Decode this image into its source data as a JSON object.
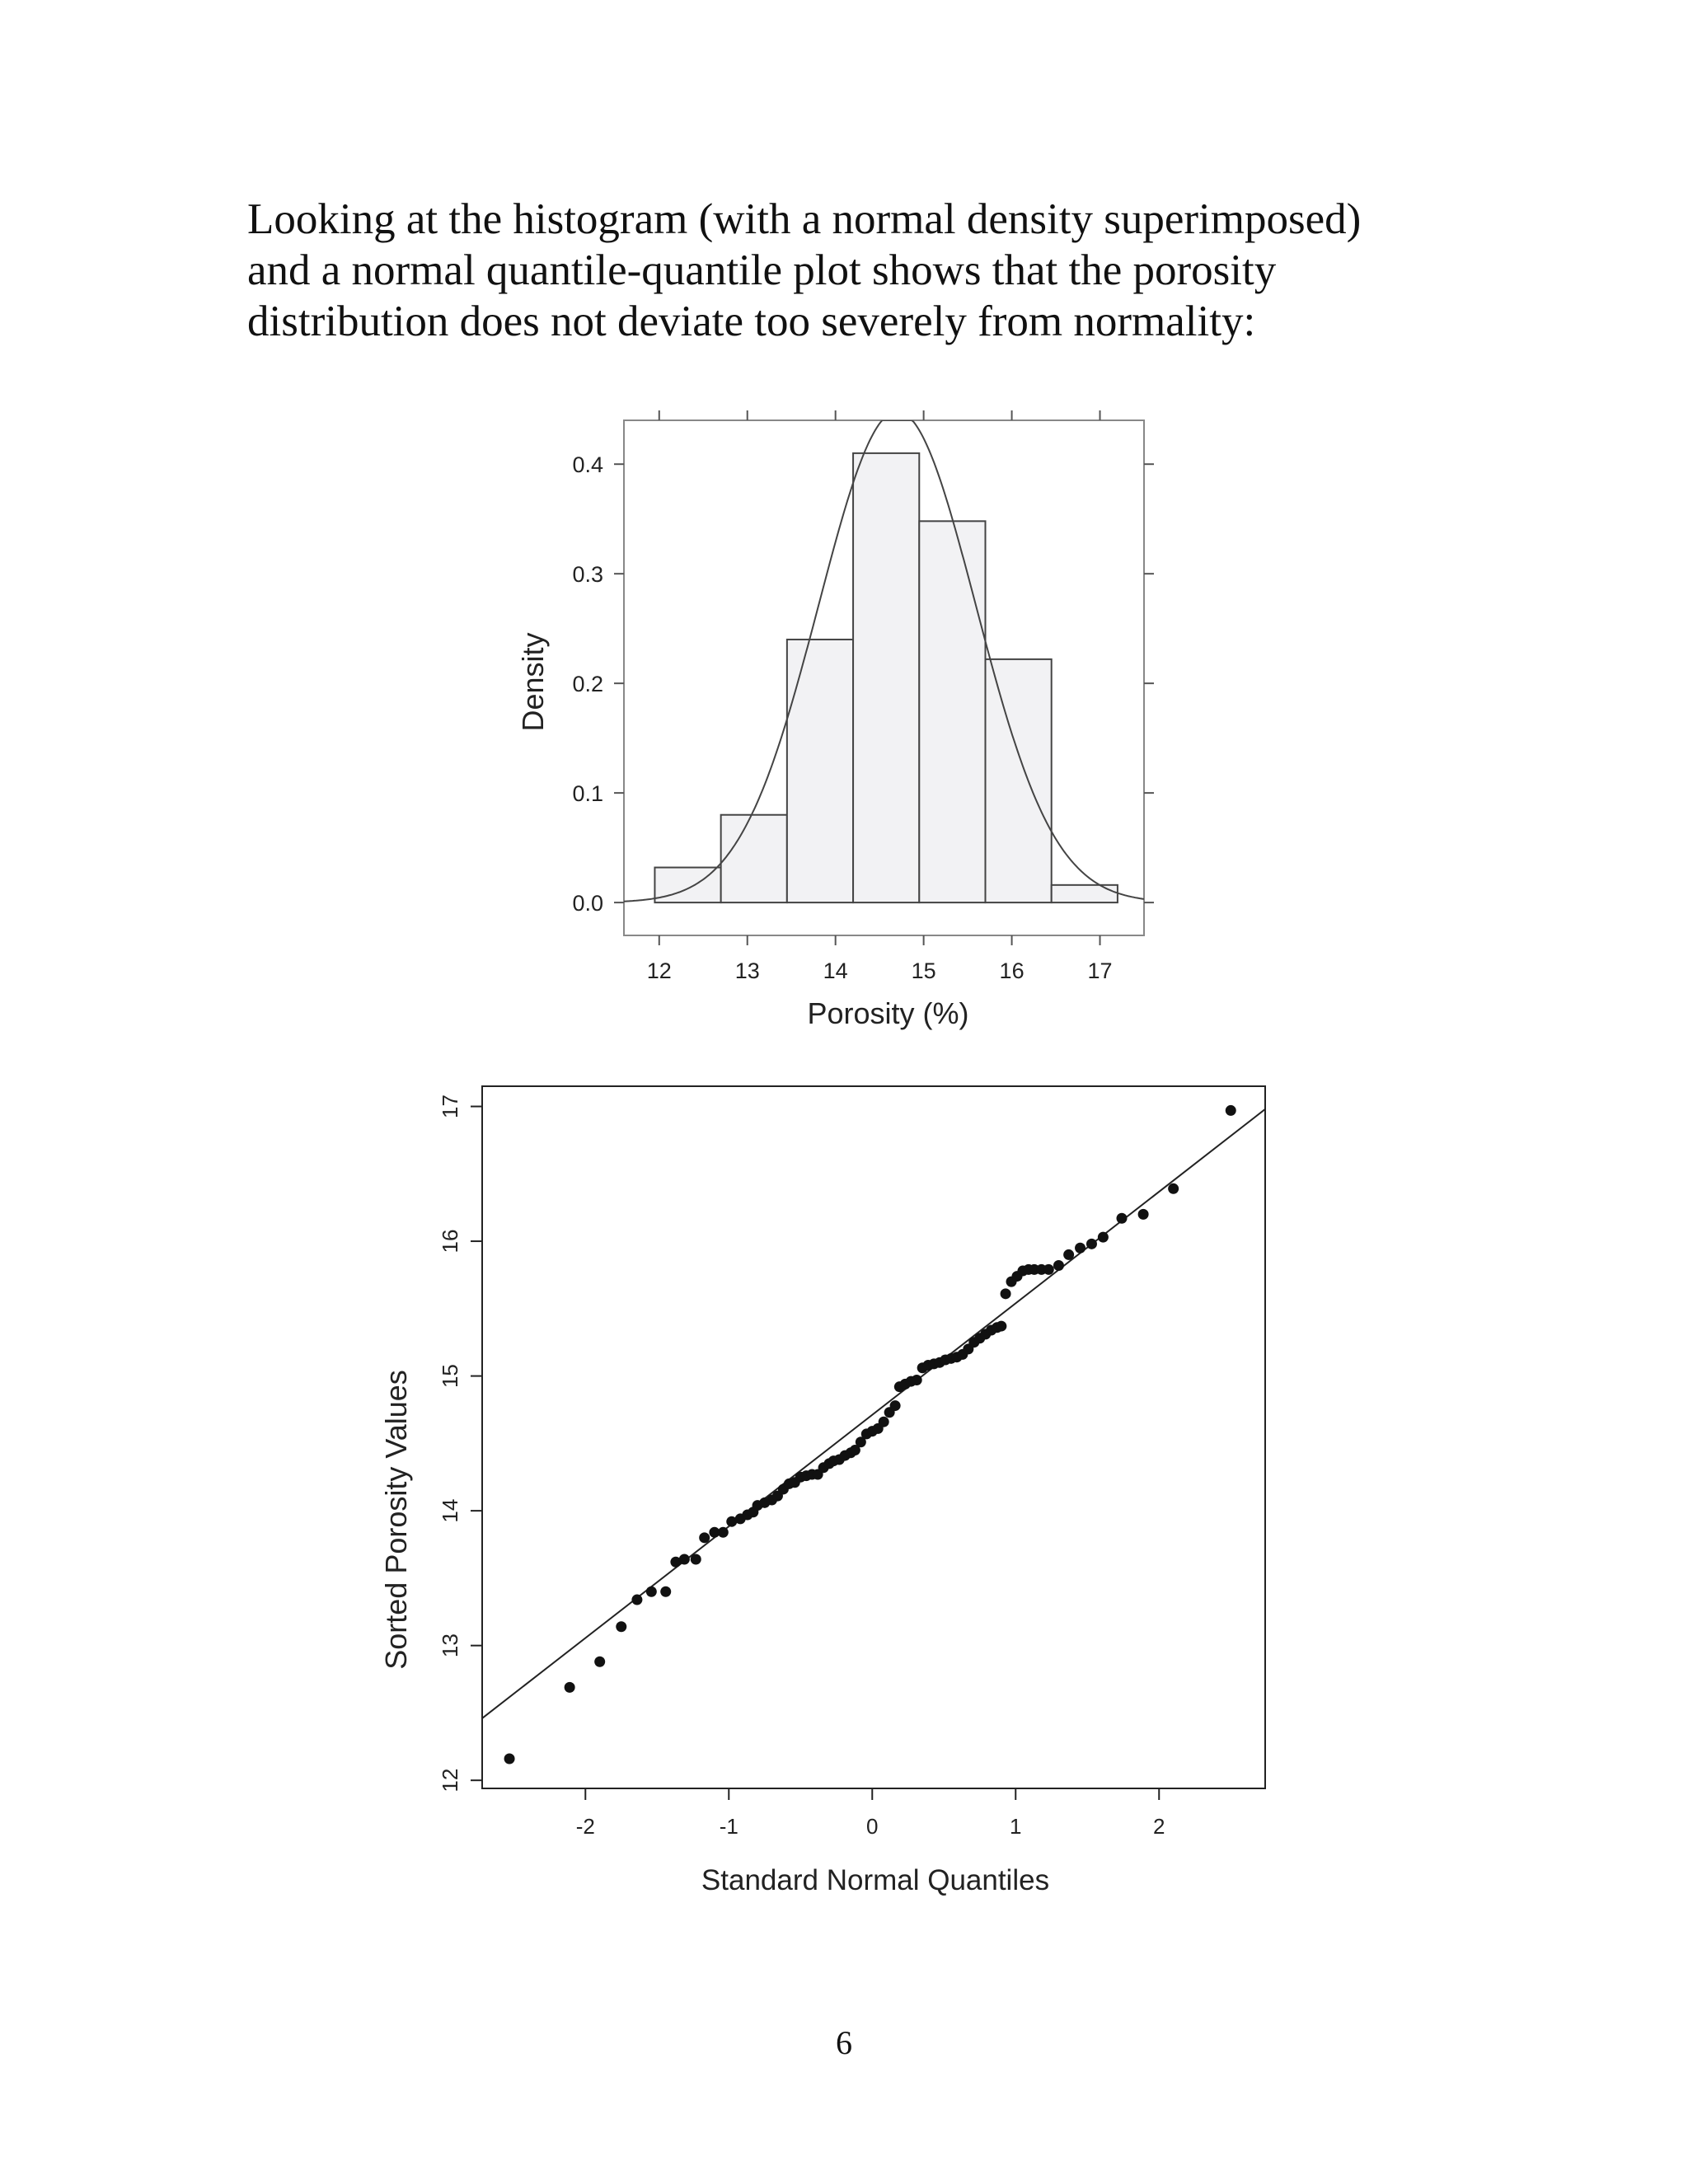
{
  "paragraph": {
    "lines": [
      "Looking at the histogram (with a normal density superimposed)",
      "and a normal quantile-quantile plot shows that the porosity",
      "distribution does not deviate too severely from normality:"
    ]
  },
  "page_number": "6",
  "chart_data": [
    {
      "type": "bar",
      "subtype": "histogram-with-density",
      "xlabel": "Porosity (%)",
      "ylabel": "Density",
      "xlim": [
        11.6,
        17.5
      ],
      "ylim": [
        -0.03,
        0.44
      ],
      "x_ticks": [
        "12",
        "13",
        "14",
        "15",
        "16",
        "17"
      ],
      "y_ticks": [
        "0.0",
        "0.1",
        "0.2",
        "0.3",
        "0.4"
      ],
      "bins": [
        {
          "x0": 11.95,
          "x1": 12.7,
          "density": 0.032
        },
        {
          "x0": 12.7,
          "x1": 13.45,
          "density": 0.08
        },
        {
          "x0": 13.45,
          "x1": 14.2,
          "density": 0.24
        },
        {
          "x0": 14.2,
          "x1": 14.95,
          "density": 0.41
        },
        {
          "x0": 14.95,
          "x1": 15.7,
          "density": 0.348
        },
        {
          "x0": 15.7,
          "x1": 16.45,
          "density": 0.222
        },
        {
          "x0": 16.45,
          "x1": 17.2,
          "density": 0.016
        }
      ],
      "density_curve": {
        "distribution": "normal",
        "mean": 14.7,
        "sd": 0.89
      },
      "bar_fill": "#f2f2f4",
      "line_color": "#444444"
    },
    {
      "type": "scatter",
      "subtype": "normal-qq",
      "xlabel": "Standard Normal Quantiles",
      "ylabel": "Sorted Porosity Values",
      "xlim": [
        -2.72,
        2.74
      ],
      "ylim": [
        11.94,
        17.15
      ],
      "x_ticks": [
        "-2",
        "-1",
        "0",
        "1",
        "2"
      ],
      "y_ticks": [
        "12",
        "13",
        "14",
        "15",
        "16",
        "17"
      ],
      "reference_line": {
        "x": [
          -2.72,
          2.74
        ],
        "y": [
          12.46,
          16.98
        ]
      },
      "points": [
        [
          -2.53,
          12.16
        ],
        [
          -2.11,
          12.69
        ],
        [
          -1.9,
          12.88
        ],
        [
          -1.75,
          13.14
        ],
        [
          -1.64,
          13.34
        ],
        [
          -1.54,
          13.4
        ],
        [
          -1.44,
          13.4
        ],
        [
          -1.37,
          13.62
        ],
        [
          -1.31,
          13.64
        ],
        [
          -1.23,
          13.64
        ],
        [
          -1.17,
          13.8
        ],
        [
          -1.1,
          13.84
        ],
        [
          -1.04,
          13.84
        ],
        [
          -0.98,
          13.92
        ],
        [
          -0.92,
          13.94
        ],
        [
          -0.87,
          13.97
        ],
        [
          -0.83,
          13.99
        ],
        [
          -0.8,
          14.04
        ],
        [
          -0.75,
          14.06
        ],
        [
          -0.7,
          14.08
        ],
        [
          -0.66,
          14.11
        ],
        [
          -0.62,
          14.16
        ],
        [
          -0.58,
          14.2
        ],
        [
          -0.54,
          14.21
        ],
        [
          -0.5,
          14.25
        ],
        [
          -0.46,
          14.26
        ],
        [
          -0.42,
          14.27
        ],
        [
          -0.38,
          14.27
        ],
        [
          -0.34,
          14.32
        ],
        [
          -0.3,
          14.35
        ],
        [
          -0.27,
          14.37
        ],
        [
          -0.23,
          14.38
        ],
        [
          -0.19,
          14.41
        ],
        [
          -0.15,
          14.43
        ],
        [
          -0.12,
          14.45
        ],
        [
          -0.08,
          14.51
        ],
        [
          -0.04,
          14.57
        ],
        [
          0.0,
          14.59
        ],
        [
          0.04,
          14.61
        ],
        [
          0.08,
          14.66
        ],
        [
          0.12,
          14.73
        ],
        [
          0.16,
          14.78
        ],
        [
          0.19,
          14.92
        ],
        [
          0.23,
          14.94
        ],
        [
          0.27,
          14.96
        ],
        [
          0.31,
          14.97
        ],
        [
          0.35,
          15.06
        ],
        [
          0.39,
          15.08
        ],
        [
          0.43,
          15.09
        ],
        [
          0.47,
          15.1
        ],
        [
          0.51,
          15.12
        ],
        [
          0.55,
          15.13
        ],
        [
          0.59,
          15.14
        ],
        [
          0.63,
          15.16
        ],
        [
          0.67,
          15.2
        ],
        [
          0.71,
          15.25
        ],
        [
          0.75,
          15.28
        ],
        [
          0.79,
          15.31
        ],
        [
          0.83,
          15.34
        ],
        [
          0.87,
          15.36
        ],
        [
          0.9,
          15.37
        ],
        [
          0.93,
          15.61
        ],
        [
          0.97,
          15.7
        ],
        [
          1.01,
          15.74
        ],
        [
          1.05,
          15.78
        ],
        [
          1.09,
          15.79
        ],
        [
          1.13,
          15.79
        ],
        [
          1.18,
          15.79
        ],
        [
          1.23,
          15.79
        ],
        [
          1.3,
          15.82
        ],
        [
          1.37,
          15.9
        ],
        [
          1.45,
          15.95
        ],
        [
          1.53,
          15.98
        ],
        [
          1.61,
          16.03
        ],
        [
          1.74,
          16.17
        ],
        [
          1.89,
          16.2
        ],
        [
          2.1,
          16.39
        ],
        [
          2.5,
          16.97
        ]
      ]
    }
  ]
}
